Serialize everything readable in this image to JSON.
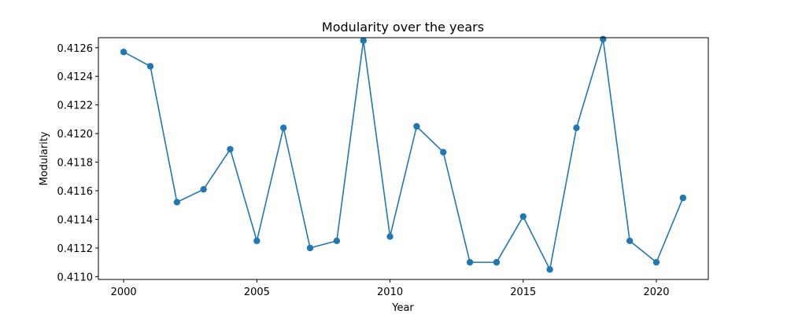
{
  "chart_data": {
    "type": "line",
    "title": "Modularity over the years",
    "xlabel": "Year",
    "ylabel": "Modularity",
    "xlim": [
      1999.05,
      2021.95
    ],
    "ylim": [
      0.41098,
      0.41267
    ],
    "grid": false,
    "legend": "none",
    "x_ticks": [
      2000,
      2005,
      2010,
      2015,
      2020
    ],
    "y_ticks": [
      0.411,
      0.4112,
      0.4114,
      0.4116,
      0.4118,
      0.412,
      0.4122,
      0.4124,
      0.4126
    ],
    "y_tick_decimals": 4,
    "color": "#1f77b4",
    "series": [
      {
        "x": [
          2000,
          2001,
          2002,
          2003,
          2004,
          2005,
          2006,
          2007,
          2008,
          2009,
          2010,
          2011,
          2012,
          2013,
          2014,
          2015,
          2016,
          2017,
          2018,
          2019,
          2020,
          2021
        ],
        "values": [
          0.41257,
          0.41247,
          0.41152,
          0.41161,
          0.41189,
          0.41125,
          0.41204,
          0.4112,
          0.41125,
          0.41265,
          0.41128,
          0.41205,
          0.41187,
          0.4111,
          0.4111,
          0.41142,
          0.41105,
          0.41204,
          0.41266,
          0.41125,
          0.4111,
          0.41155
        ]
      }
    ]
  }
}
